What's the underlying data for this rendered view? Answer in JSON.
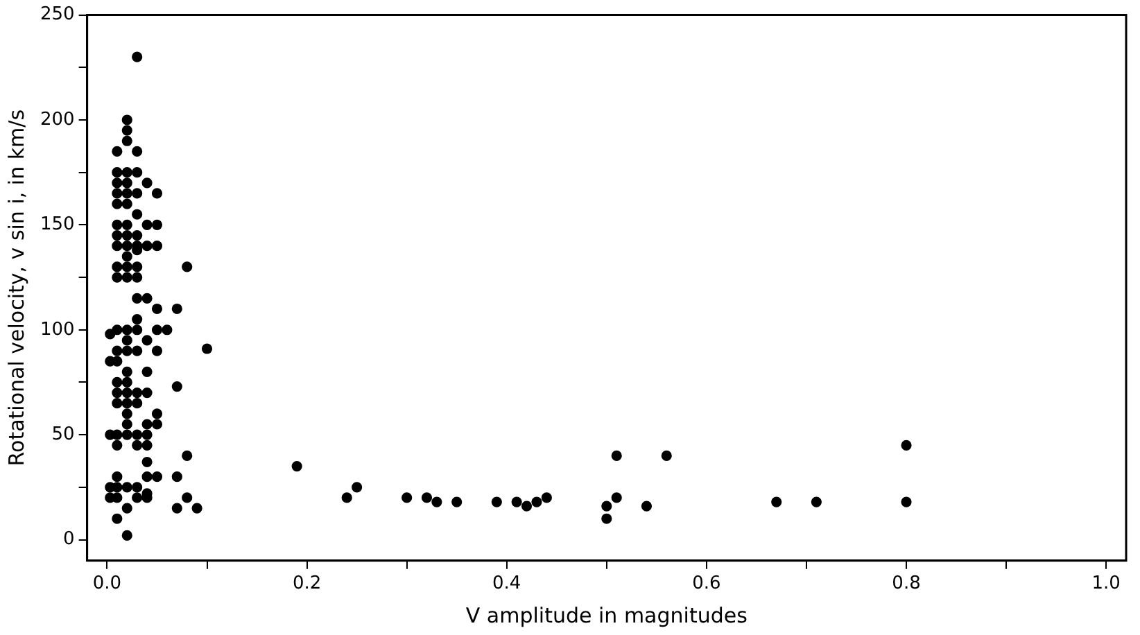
{
  "chart_data": {
    "type": "scatter",
    "xlabel": "V amplitude in magnitudes",
    "ylabel": "Rotational velocity, v sin i, in km/s",
    "xlim": [
      -0.02,
      1.02
    ],
    "ylim": [
      -10,
      250
    ],
    "xticks": [
      {
        "value": 0,
        "label": "0.0"
      },
      {
        "value": 0.1,
        "label": null
      },
      0.2,
      {
        "value": 0.3,
        "label": null
      },
      0.4,
      {
        "value": 0.5,
        "label": null
      },
      0.6,
      {
        "value": 0.7,
        "label": null
      },
      0.8,
      {
        "value": 0.9,
        "label": null
      },
      {
        "value": 1,
        "label": "1.0"
      }
    ],
    "yticks": [
      0,
      {
        "value": 25,
        "label": null
      },
      50,
      {
        "value": 75,
        "label": null
      },
      100,
      {
        "value": 125,
        "label": null
      },
      150,
      {
        "value": 175,
        "label": null
      },
      200,
      {
        "value": 225,
        "label": null
      },
      250
    ],
    "grid": false,
    "legend": false,
    "marker": "circle",
    "series": [
      {
        "color": "#000000",
        "x": [
          0.003,
          0.003,
          0.003,
          0.003,
          0.003,
          0.01,
          0.01,
          0.01,
          0.01,
          0.01,
          0.01,
          0.01,
          0.01,
          0.01,
          0.01,
          0.01,
          0.01,
          0.01,
          0.01,
          0.01,
          0.01,
          0.01,
          0.01,
          0.01,
          0.01,
          0.01,
          0.01,
          0.02,
          0.02,
          0.02,
          0.02,
          0.02,
          0.02,
          0.02,
          0.02,
          0.02,
          0.02,
          0.02,
          0.02,
          0.02,
          0.02,
          0.02,
          0.02,
          0.02,
          0.02,
          0.02,
          0.02,
          0.02,
          0.02,
          0.02,
          0.02,
          0.02,
          0.02,
          0.03,
          0.03,
          0.03,
          0.03,
          0.03,
          0.03,
          0.03,
          0.03,
          0.03,
          0.03,
          0.03,
          0.03,
          0.03,
          0.03,
          0.03,
          0.03,
          0.03,
          0.03,
          0.03,
          0.03,
          0.04,
          0.04,
          0.04,
          0.04,
          0.04,
          0.04,
          0.04,
          0.04,
          0.04,
          0.04,
          0.04,
          0.04,
          0.04,
          0.04,
          0.05,
          0.05,
          0.05,
          0.05,
          0.05,
          0.05,
          0.05,
          0.05,
          0.05,
          0.06,
          0.07,
          0.07,
          0.07,
          0.07,
          0.08,
          0.08,
          0.08,
          0.09,
          0.1,
          0.19,
          0.24,
          0.25,
          0.3,
          0.32,
          0.33,
          0.35,
          0.39,
          0.41,
          0.42,
          0.43,
          0.44,
          0.5,
          0.5,
          0.51,
          0.51,
          0.54,
          0.56,
          0.67,
          0.71,
          0.8,
          0.8
        ],
        "values": [
          20,
          25,
          50,
          85,
          98,
          10,
          20,
          25,
          30,
          45,
          50,
          65,
          70,
          75,
          85,
          90,
          100,
          125,
          130,
          140,
          145,
          150,
          160,
          165,
          170,
          175,
          185,
          2,
          15,
          25,
          50,
          55,
          60,
          65,
          70,
          75,
          80,
          90,
          95,
          100,
          125,
          130,
          135,
          140,
          145,
          150,
          160,
          165,
          170,
          175,
          190,
          195,
          200,
          20,
          25,
          45,
          50,
          65,
          70,
          90,
          100,
          105,
          115,
          125,
          130,
          138,
          140,
          145,
          155,
          165,
          175,
          185,
          230,
          20,
          22,
          30,
          37,
          45,
          50,
          55,
          70,
          80,
          95,
          115,
          140,
          150,
          170,
          30,
          55,
          60,
          90,
          100,
          110,
          140,
          150,
          165,
          100,
          15,
          30,
          73,
          110,
          20,
          40,
          130,
          15,
          91,
          35,
          20,
          25,
          20,
          20,
          18,
          18,
          18,
          18,
          16,
          18,
          20,
          16,
          10,
          20,
          40,
          16,
          40,
          18,
          18,
          45,
          18
        ]
      }
    ]
  }
}
